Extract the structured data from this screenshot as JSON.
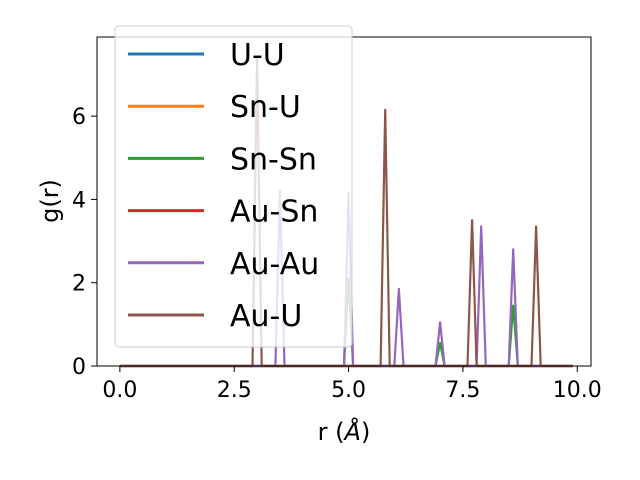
{
  "chart_data": {
    "type": "line",
    "xlabel_main": "r (",
    "xlabel_unit": "Å",
    "xlabel_close": ")",
    "ylabel": "g(r)",
    "xlim": [
      -0.5,
      10.3
    ],
    "ylim": [
      0,
      7.9
    ],
    "xticks": [
      0.0,
      2.5,
      5.0,
      7.5,
      10.0
    ],
    "xtick_labels": [
      "0.0",
      "2.5",
      "5.0",
      "7.5",
      "10.0"
    ],
    "yticks": [
      0,
      2,
      4,
      6
    ],
    "ytick_labels": [
      "0",
      "2",
      "4",
      "6"
    ],
    "legend_position": "upper-left",
    "grid": false,
    "x_start": 0.0,
    "x_end": 9.9,
    "series": [
      {
        "name": "U-U",
        "color": "#1f77b4",
        "peaks": []
      },
      {
        "name": "Sn-U",
        "color": "#ff7f0e",
        "peaks": []
      },
      {
        "name": "Sn-Sn",
        "color": "#2ca02c",
        "peaks": [
          [
            5.0,
            2.1
          ],
          [
            7.0,
            0.55
          ],
          [
            8.6,
            1.45
          ]
        ]
      },
      {
        "name": "Au-Sn",
        "color": "#d62728",
        "peaks": []
      },
      {
        "name": "Au-Au",
        "color": "#9467bd",
        "peaks": [
          [
            3.5,
            4.2
          ],
          [
            5.0,
            4.15
          ],
          [
            6.1,
            1.85
          ],
          [
            7.0,
            1.05
          ],
          [
            7.9,
            3.35
          ],
          [
            8.6,
            2.8
          ]
        ]
      },
      {
        "name": "Au-U",
        "color": "#8c564b",
        "peaks": [
          [
            3.0,
            7.4
          ],
          [
            5.8,
            6.15
          ],
          [
            7.7,
            3.5
          ],
          [
            9.1,
            3.35
          ]
        ]
      }
    ]
  }
}
